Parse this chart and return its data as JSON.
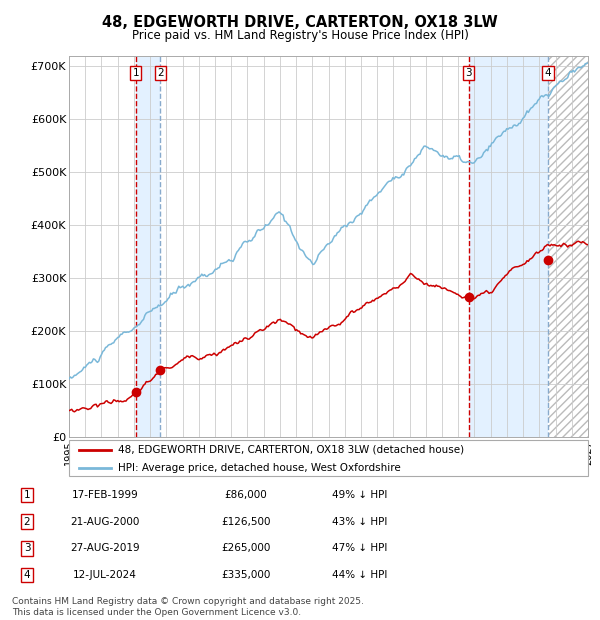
{
  "title": "48, EDGEWORTH DRIVE, CARTERTON, OX18 3LW",
  "subtitle": "Price paid vs. HM Land Registry's House Price Index (HPI)",
  "xlim": [
    1995.0,
    2027.0
  ],
  "ylim": [
    0,
    720000
  ],
  "yticks": [
    0,
    100000,
    200000,
    300000,
    400000,
    500000,
    600000,
    700000
  ],
  "ytick_labels": [
    "£0",
    "£100K",
    "£200K",
    "£300K",
    "£400K",
    "£500K",
    "£600K",
    "£700K"
  ],
  "transactions": [
    {
      "num": 1,
      "date": "17-FEB-1999",
      "year": 1999.12,
      "price": 86000,
      "pct": "49%",
      "dir": "↓"
    },
    {
      "num": 2,
      "date": "21-AUG-2000",
      "year": 2000.64,
      "price": 126500,
      "pct": "43%",
      "dir": "↓"
    },
    {
      "num": 3,
      "date": "27-AUG-2019",
      "year": 2019.65,
      "price": 265000,
      "pct": "47%",
      "dir": "↓"
    },
    {
      "num": 4,
      "date": "12-JUL-2024",
      "year": 2024.53,
      "price": 335000,
      "pct": "44%",
      "dir": "↓"
    }
  ],
  "hpi_color": "#7ab8d9",
  "price_color": "#cc0000",
  "shade_color": "#ddeeff",
  "vline_solid_color": "#cc0000",
  "vline_dash_color": "#88aacc",
  "grid_color": "#cccccc",
  "background_color": "#ffffff",
  "legend_label_price": "48, EDGEWORTH DRIVE, CARTERTON, OX18 3LW (detached house)",
  "legend_label_hpi": "HPI: Average price, detached house, West Oxfordshire",
  "footer": "Contains HM Land Registry data © Crown copyright and database right 2025.\nThis data is licensed under the Open Government Licence v3.0."
}
